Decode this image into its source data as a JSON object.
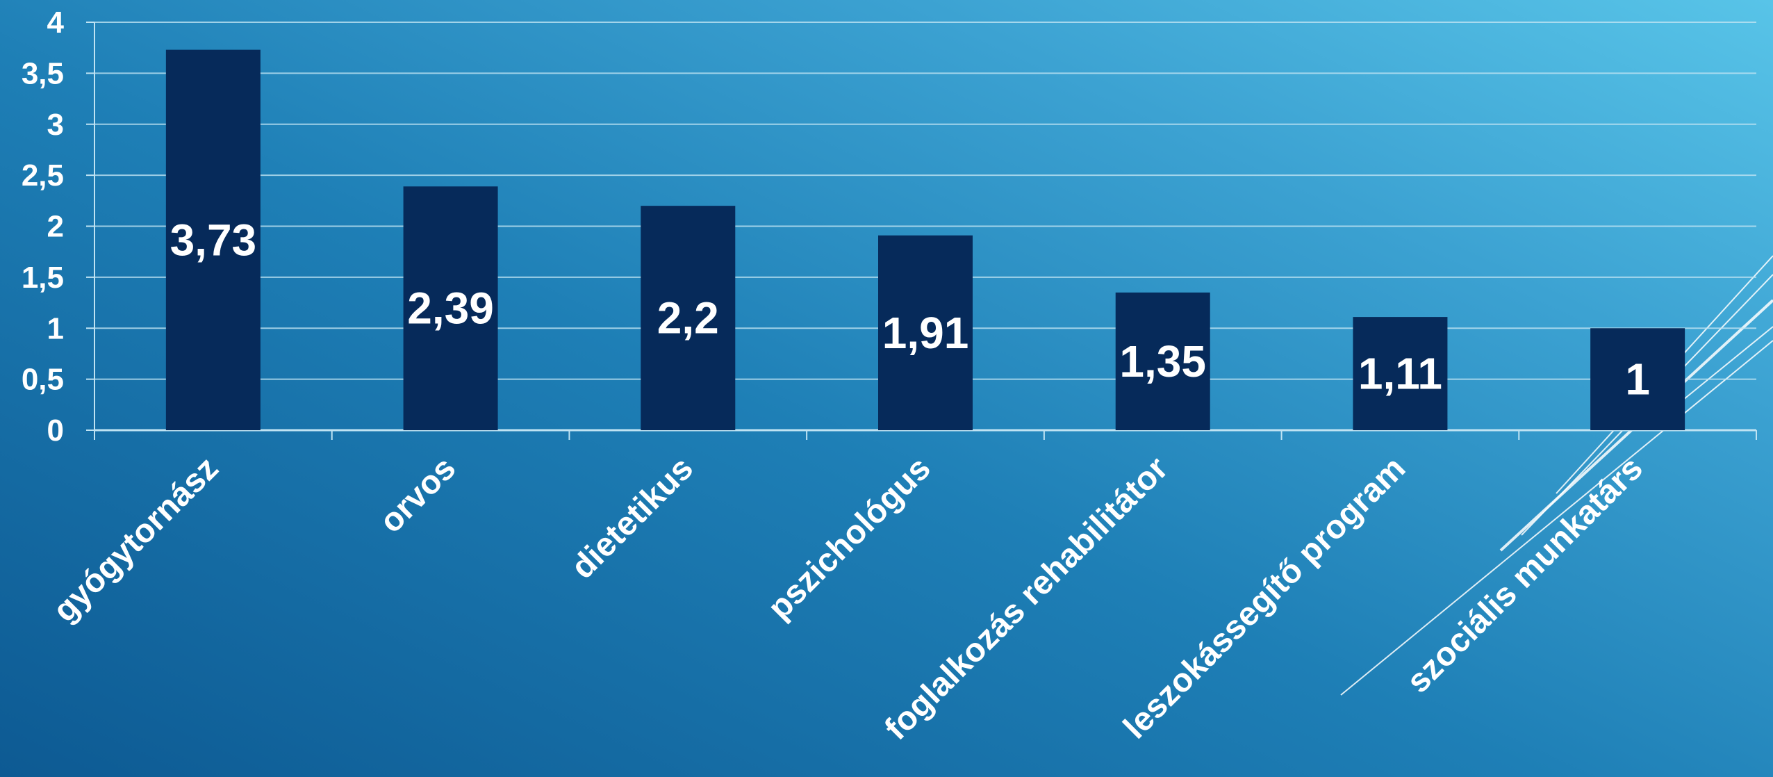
{
  "chart_data": {
    "type": "bar",
    "categories": [
      "gyógytornász",
      "orvos",
      "dietetikus",
      "pszichológus",
      "foglalkozás rehabilitátor",
      "leszokássegítő program",
      "szociális munkatárs"
    ],
    "values": [
      3.73,
      2.39,
      2.2,
      1.91,
      1.35,
      1.11,
      1
    ],
    "data_labels": [
      "3,73",
      "2,39",
      "2,2",
      "1,91",
      "1,35",
      "1,11",
      "1"
    ],
    "ylim": [
      0,
      4
    ],
    "yticks": [
      0,
      0.5,
      1,
      1.5,
      2,
      2.5,
      3,
      3.5,
      4
    ],
    "ytick_labels": [
      "0",
      "0,5",
      "1",
      "1,5",
      "2",
      "2,5",
      "3",
      "3,5",
      "4"
    ],
    "grid": true,
    "legend": "none",
    "title": "",
    "xlabel": "",
    "ylabel": "",
    "colors": {
      "bar": "#062a5a",
      "text": "#ffffff",
      "grid": "#bfe3f3"
    }
  }
}
